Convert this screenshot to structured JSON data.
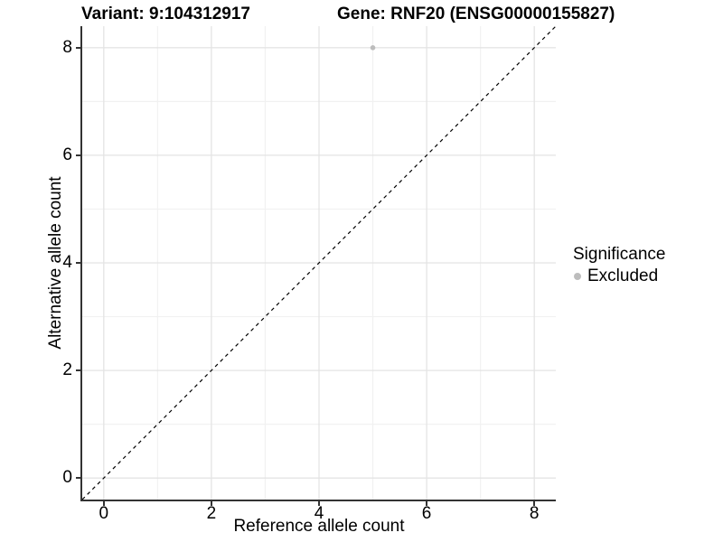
{
  "figure": {
    "title_variant": "Variant: 9:104312917",
    "title_gene": "Gene: RNF20 (ENSG00000155827)"
  },
  "axes": {
    "x_label": "Reference allele count",
    "y_label": "Alternative allele count"
  },
  "legend": {
    "title": "Significance",
    "items": [
      {
        "label": "Excluded",
        "color": "#bdbdbd"
      }
    ]
  },
  "colors": {
    "axis_line": "#333333",
    "grid_major": "#e4e4e4",
    "grid_minor": "#f1f1f1",
    "identity_line": "#000000",
    "point": "#bdbdbd",
    "text": "#000000",
    "background": "#ffffff"
  },
  "chart_data": {
    "type": "scatter",
    "title": "Variant: 9:104312917 / Gene: RNF20 (ENSG00000155827)",
    "xlabel": "Reference allele count",
    "ylabel": "Alternative allele count",
    "xlim": [
      -0.4,
      8.4
    ],
    "ylim": [
      -0.4,
      8.4
    ],
    "x_ticks": [
      0,
      2,
      4,
      6,
      8
    ],
    "y_ticks": [
      0,
      2,
      4,
      6,
      8
    ],
    "x_minor": [
      1,
      3,
      5,
      7
    ],
    "y_minor": [
      1,
      3,
      5,
      7
    ],
    "grid": "major+minor",
    "legend_position": "right",
    "series": [
      {
        "name": "Excluded",
        "color": "#bdbdbd",
        "points": [
          {
            "x": 5,
            "y": 8
          }
        ]
      }
    ],
    "reference_line": {
      "type": "identity y=x",
      "style": "dashed",
      "color": "#000000",
      "from": [
        -0.4,
        -0.4
      ],
      "to": [
        8.4,
        8.4
      ]
    }
  }
}
